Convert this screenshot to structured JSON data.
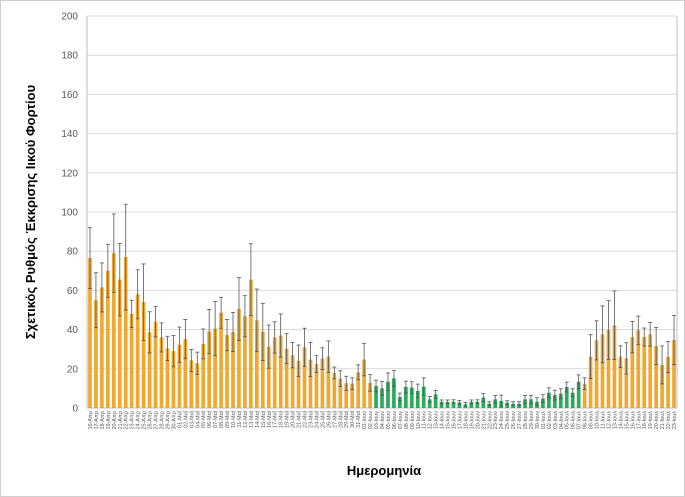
{
  "chart_data": {
    "type": "bar",
    "title": "",
    "xlabel": "Ημερομηνία",
    "ylabel": "Σχετικός Ρυθμός Έκκρισης Ιικού Φορτίου",
    "ylim": [
      0,
      200
    ],
    "yticks": [
      0,
      20,
      40,
      60,
      80,
      100,
      120,
      140,
      160,
      180,
      200
    ],
    "grid": true,
    "legend": "none",
    "error_bars": true,
    "palette": [
      "#F0A830",
      "#2EAA5E"
    ],
    "error_bar_color": "#555555",
    "categories": [
      "16-Απρ",
      "17-Απρ",
      "18-Απρ",
      "19-Απρ",
      "20-Απρ",
      "21-Απρ",
      "22-Απρ",
      "23-Απρ",
      "24-Απρ",
      "25-Απρ",
      "26-Απρ",
      "27-Απρ",
      "28-Απρ",
      "29-Απρ",
      "30-Απρ",
      "01-Μαΐ",
      "02-Μαΐ",
      "03-Μαΐ",
      "04-Μαΐ",
      "05-Μαΐ",
      "06-Μαΐ",
      "07-Μαΐ",
      "08-Μαΐ",
      "09-Μαΐ",
      "10-Μαΐ",
      "11-Μαΐ",
      "12-Μαΐ",
      "13-Μαΐ",
      "14-Μαΐ",
      "15-Μαΐ",
      "16-Μαΐ",
      "17-Μαΐ",
      "18-Μαΐ",
      "19-Μαΐ",
      "20-Μαΐ",
      "21-Μαΐ",
      "22-Μαΐ",
      "23-Μαΐ",
      "24-Μαΐ",
      "25-Μαΐ",
      "26-Μαΐ",
      "27-Μαΐ",
      "28-Μαΐ",
      "29-Μαΐ",
      "30-Μαΐ",
      "31-Μαΐ",
      "01-Ιουν",
      "02-Ιουν",
      "03-Ιουν",
      "04-Ιουν",
      "05-Ιουν",
      "06-Ιουν",
      "07-Ιουν",
      "08-Ιουν",
      "09-Ιουν",
      "10-Ιουν",
      "11-Ιουν",
      "12-Ιουν",
      "13-Ιουν",
      "14-Ιουν",
      "15-Ιουν",
      "16-Ιουν",
      "17-Ιουν",
      "18-Ιουν",
      "19-Ιουν",
      "20-Ιουν",
      "21-Ιουν",
      "22-Ιουν",
      "23-Ιουν",
      "24-Ιουν",
      "25-Ιουν",
      "26-Ιουν",
      "27-Ιουν",
      "28-Ιουν",
      "29-Ιουν",
      "30-Ιουν",
      "01-Ιουλ",
      "02-Ιουλ",
      "03-Ιουλ",
      "04-Ιουλ",
      "05-Ιουλ",
      "06-Ιουλ",
      "07-Ιουλ",
      "08-Ιουλ",
      "09-Ιουλ",
      "10-Ιουλ",
      "11-Ιουλ",
      "12-Ιουλ",
      "13-Ιουλ",
      "14-Ιουλ",
      "15-Ιουλ",
      "16-Ιουλ",
      "17-Ιουλ",
      "18-Ιουλ",
      "19-Ιουλ",
      "20-Ιουλ",
      "21-Ιουλ",
      "22-Ιουλ",
      "23-Ιουλ"
    ],
    "values": [
      76.5,
      55,
      61.5,
      70,
      79,
      65.5,
      77,
      48,
      58,
      54,
      38.6,
      44,
      36,
      30.4,
      29,
      32.3,
      35.2,
      24.3,
      22.8,
      32.7,
      39,
      40.5,
      48.6,
      37.2,
      38.8,
      50.5,
      46.8,
      65.5,
      44.7,
      38.8,
      31.3,
      36,
      37,
      30.3,
      27,
      24.1,
      31,
      24.7,
      22.4,
      25.2,
      26.2,
      17.9,
      15,
      12.6,
      12.4,
      18.2,
      24.7,
      12.8,
      11.2,
      10,
      13.4,
      15.1,
      5.6,
      10.7,
      10.4,
      8.7,
      10.9,
      4.4,
      7,
      3.1,
      3.1,
      3.2,
      2.9,
      1.9,
      3.1,
      3.2,
      5.3,
      2.2,
      4.4,
      3.6,
      2.7,
      2.2,
      2.2,
      4.4,
      4.4,
      3.2,
      4.8,
      7.8,
      6.6,
      7.3,
      10.7,
      7.8,
      13.4,
      12.4,
      26.2,
      34.5,
      37.6,
      39.8,
      42.2,
      26.2,
      25.3,
      36.2,
      39.6,
      36.2,
      37.6,
      31.6,
      22,
      26,
      34.7
    ],
    "errors": [
      15.5,
      14,
      12.5,
      13.5,
      20,
      18.5,
      27,
      7,
      12.5,
      19.5,
      10.5,
      7.7,
      7.4,
      6.2,
      8,
      9,
      10,
      5.6,
      5.7,
      7.6,
      11.3,
      13.8,
      7.9,
      8,
      10,
      16,
      10.5,
      18.3,
      16,
      14.6,
      11,
      8,
      11,
      7.7,
      6.5,
      8,
      9.7,
      8.7,
      4.3,
      5.5,
      8,
      3,
      4,
      3.6,
      3,
      3.8,
      8.3,
      4.2,
      3,
      3.5,
      4.5,
      4,
      2,
      3,
      3,
      3.5,
      4.5,
      1.5,
      2,
      1,
      1,
      1,
      1,
      1,
      1,
      1,
      2,
      1,
      2,
      3,
      1,
      1,
      1,
      2,
      2,
      2,
      2,
      2.5,
      2.5,
      2.5,
      2.5,
      2,
      3.5,
      3,
      11.2,
      10,
      14.5,
      15,
      17.5,
      5.5,
      8,
      8,
      7.3,
      4.6,
      6,
      9.5,
      9.7,
      8,
      12.5
    ],
    "bar_color_index": [
      0,
      0,
      0,
      0,
      0,
      0,
      0,
      0,
      0,
      0,
      0,
      0,
      0,
      0,
      0,
      0,
      0,
      0,
      0,
      0,
      0,
      0,
      0,
      0,
      0,
      0,
      0,
      0,
      0,
      0,
      0,
      0,
      0,
      0,
      0,
      0,
      0,
      0,
      0,
      0,
      0,
      0,
      0,
      0,
      0,
      0,
      0,
      0,
      1,
      1,
      1,
      1,
      1,
      1,
      1,
      1,
      1,
      1,
      1,
      1,
      1,
      1,
      1,
      1,
      1,
      1,
      1,
      1,
      1,
      1,
      1,
      1,
      1,
      1,
      1,
      1,
      1,
      1,
      1,
      1,
      1,
      1,
      1,
      0,
      0,
      0,
      0,
      0,
      0,
      0,
      0,
      0,
      0,
      0,
      0,
      0,
      0,
      0,
      0
    ]
  }
}
